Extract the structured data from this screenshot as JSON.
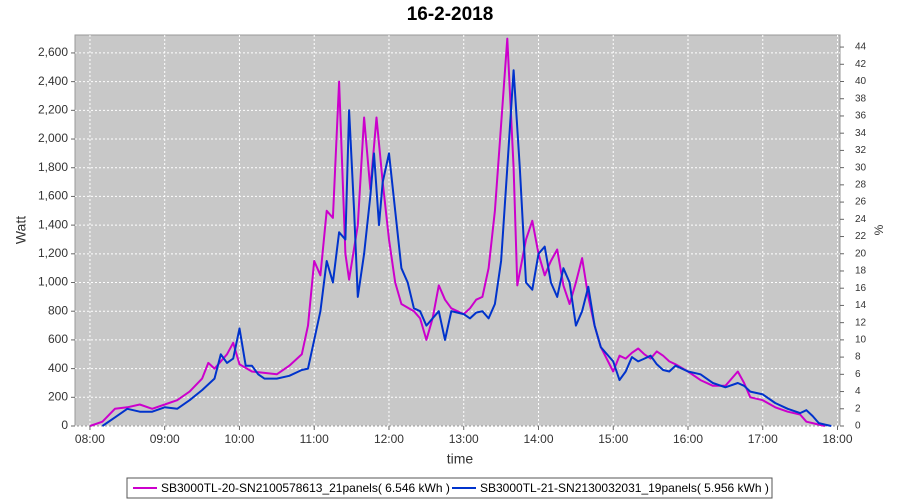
{
  "chart_data": {
    "type": "line",
    "title": "16-2-2018",
    "xlabel": "time",
    "ylabel": "Watt",
    "y2label": "%",
    "xlim": [
      "07:48",
      "18:02"
    ],
    "xticks": [
      "08:00",
      "09:00",
      "10:00",
      "11:00",
      "12:00",
      "13:00",
      "14:00",
      "15:00",
      "16:00",
      "17:00",
      "18:00"
    ],
    "ylim": [
      0,
      2725
    ],
    "yticks": [
      0,
      200,
      400,
      600,
      800,
      1000,
      1200,
      1400,
      1600,
      1800,
      2000,
      2200,
      2400,
      2600
    ],
    "yticklabels": [
      {
        "value": 0,
        "label": "0"
      },
      {
        "value": 200,
        "label": "200"
      },
      {
        "value": 400,
        "label": "400"
      },
      {
        "value": 600,
        "label": "600"
      },
      {
        "value": 800,
        "label": "800"
      },
      {
        "value": 1000,
        "label": "1,000"
      },
      {
        "value": 1200,
        "label": "1,200"
      },
      {
        "value": 1400,
        "label": "1,400"
      },
      {
        "value": 1600,
        "label": "1,600"
      },
      {
        "value": 1800,
        "label": "1,800"
      },
      {
        "value": 2000,
        "label": "2,000"
      },
      {
        "value": 2200,
        "label": "2,200"
      },
      {
        "value": 2400,
        "label": "2,400"
      },
      {
        "value": 2600,
        "label": "2,600"
      }
    ],
    "y2lim": [
      0,
      45.4
    ],
    "y2ticks": [
      0,
      2,
      4,
      6,
      8,
      10,
      12,
      14,
      16,
      18,
      20,
      22,
      24,
      26,
      28,
      30,
      32,
      34,
      36,
      38,
      40,
      42,
      44
    ],
    "grid": true,
    "legend": "bottom",
    "series": [
      {
        "name": "SB3000TL-20-SN2100578613_21panels( 6.546 kWh )",
        "color": "#cc00cc",
        "x": [
          "08:00",
          "08:10",
          "08:20",
          "08:30",
          "08:40",
          "08:50",
          "09:00",
          "09:10",
          "09:20",
          "09:30",
          "09:35",
          "09:40",
          "09:50",
          "09:55",
          "10:00",
          "10:10",
          "10:20",
          "10:30",
          "10:40",
          "10:50",
          "10:55",
          "11:00",
          "11:05",
          "11:10",
          "11:15",
          "11:20",
          "11:25",
          "11:28",
          "11:35",
          "11:40",
          "11:45",
          "11:50",
          "11:55",
          "12:00",
          "12:05",
          "12:10",
          "12:20",
          "12:25",
          "12:30",
          "12:35",
          "12:40",
          "12:45",
          "12:50",
          "13:00",
          "13:05",
          "13:10",
          "13:15",
          "13:20",
          "13:25",
          "13:30",
          "13:35",
          "13:40",
          "13:43",
          "13:50",
          "13:55",
          "14:00",
          "14:05",
          "14:10",
          "14:15",
          "14:20",
          "14:25",
          "14:30",
          "14:35",
          "14:40",
          "14:45",
          "14:50",
          "15:00",
          "15:05",
          "15:10",
          "15:15",
          "15:20",
          "15:25",
          "15:30",
          "15:35",
          "15:40",
          "15:45",
          "15:50",
          "16:00",
          "16:10",
          "16:20",
          "16:30",
          "16:40",
          "16:45",
          "16:50",
          "17:00",
          "17:10",
          "17:20",
          "17:30",
          "17:35",
          "17:40",
          "17:45",
          "17:50"
        ],
        "values": [
          0,
          30,
          120,
          130,
          150,
          120,
          150,
          180,
          240,
          330,
          440,
          400,
          500,
          580,
          430,
          380,
          370,
          360,
          420,
          500,
          700,
          1150,
          1050,
          1500,
          1450,
          2400,
          1200,
          1020,
          1400,
          2150,
          1650,
          2150,
          1700,
          1300,
          1000,
          850,
          800,
          750,
          600,
          750,
          980,
          880,
          820,
          780,
          820,
          880,
          900,
          1100,
          1500,
          2100,
          2700,
          1800,
          980,
          1300,
          1430,
          1200,
          1050,
          1150,
          1230,
          980,
          850,
          1000,
          1170,
          900,
          700,
          550,
          380,
          490,
          470,
          510,
          540,
          500,
          470,
          520,
          490,
          450,
          430,
          380,
          320,
          280,
          280,
          380,
          300,
          200,
          180,
          130,
          100,
          80,
          30,
          20,
          10,
          0
        ]
      },
      {
        "name": "SB3000TL-21-SN2130032031_19panels( 5.956 kWh )",
        "color": "#0033cc",
        "x": [
          "08:10",
          "08:20",
          "08:30",
          "08:40",
          "08:50",
          "09:00",
          "09:10",
          "09:20",
          "09:30",
          "09:40",
          "09:45",
          "09:50",
          "09:55",
          "10:00",
          "10:05",
          "10:10",
          "10:15",
          "10:20",
          "10:30",
          "10:40",
          "10:50",
          "10:55",
          "11:00",
          "11:05",
          "11:10",
          "11:15",
          "11:20",
          "11:25",
          "11:28",
          "11:32",
          "11:35",
          "11:40",
          "11:45",
          "11:48",
          "11:52",
          "11:55",
          "12:00",
          "12:05",
          "12:10",
          "12:15",
          "12:20",
          "12:25",
          "12:30",
          "12:35",
          "12:40",
          "12:45",
          "12:50",
          "13:00",
          "13:05",
          "13:10",
          "13:15",
          "13:20",
          "13:25",
          "13:30",
          "13:35",
          "13:40",
          "13:45",
          "13:50",
          "13:55",
          "14:00",
          "14:05",
          "14:10",
          "14:15",
          "14:20",
          "14:25",
          "14:30",
          "14:35",
          "14:40",
          "14:45",
          "14:50",
          "15:00",
          "15:05",
          "15:10",
          "15:15",
          "15:20",
          "15:25",
          "15:30",
          "15:35",
          "15:40",
          "15:45",
          "15:50",
          "16:00",
          "16:10",
          "16:20",
          "16:30",
          "16:40",
          "16:45",
          "16:50",
          "17:00",
          "17:10",
          "17:20",
          "17:30",
          "17:35",
          "17:40",
          "17:45",
          "17:50",
          "17:55"
        ],
        "values": [
          0,
          60,
          120,
          100,
          100,
          130,
          120,
          180,
          250,
          330,
          500,
          440,
          470,
          680,
          420,
          420,
          360,
          330,
          330,
          350,
          390,
          400,
          600,
          800,
          1150,
          1000,
          1350,
          1300,
          2200,
          1500,
          900,
          1200,
          1600,
          1900,
          1400,
          1700,
          1900,
          1500,
          1100,
          1000,
          820,
          800,
          700,
          750,
          800,
          600,
          800,
          780,
          750,
          790,
          800,
          750,
          850,
          1150,
          1800,
          2480,
          1800,
          1000,
          950,
          1200,
          1250,
          1000,
          900,
          1100,
          1000,
          700,
          800,
          970,
          700,
          550,
          450,
          320,
          380,
          480,
          450,
          470,
          490,
          430,
          390,
          380,
          420,
          380,
          360,
          300,
          270,
          300,
          280,
          240,
          220,
          160,
          120,
          90,
          110,
          70,
          20,
          10,
          0
        ]
      }
    ]
  }
}
